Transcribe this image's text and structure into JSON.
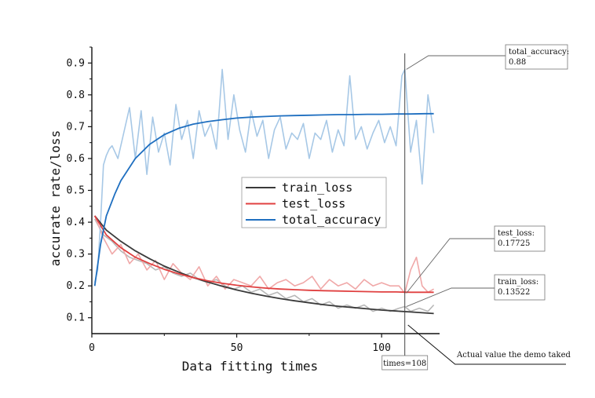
{
  "chart_data": {
    "type": "line",
    "title": "",
    "xlabel": "Data fitting times",
    "ylabel": "accurate rate/loss",
    "xlim": [
      0,
      120
    ],
    "ylim": [
      0.05,
      0.95
    ],
    "x_ticks": [
      0,
      50,
      100
    ],
    "y_ticks": [
      0.1,
      0.2,
      0.3,
      0.4,
      0.5,
      0.6,
      0.7,
      0.8,
      0.9
    ],
    "grid": false,
    "legend": {
      "placement": "center-right",
      "entries": [
        {
          "name": "train_loss",
          "color": "#3a3a3a"
        },
        {
          "name": "test_loss",
          "color": "#e04040"
        },
        {
          "name": "total_accuracy",
          "color": "#1f6fc0"
        }
      ]
    },
    "fitted_series": [
      {
        "name": "train_loss",
        "color": "#3a3a3a",
        "x": [
          1,
          5,
          10,
          15,
          20,
          25,
          30,
          35,
          40,
          45,
          50,
          55,
          60,
          65,
          70,
          75,
          80,
          85,
          90,
          95,
          100,
          105,
          110,
          115,
          118
        ],
        "y": [
          0.42,
          0.375,
          0.34,
          0.31,
          0.285,
          0.262,
          0.243,
          0.226,
          0.212,
          0.199,
          0.187,
          0.177,
          0.168,
          0.16,
          0.153,
          0.147,
          0.141,
          0.136,
          0.132,
          0.128,
          0.124,
          0.121,
          0.118,
          0.115,
          0.113
        ]
      },
      {
        "name": "test_loss",
        "color": "#e04040",
        "x": [
          1,
          5,
          10,
          15,
          20,
          25,
          30,
          35,
          40,
          45,
          50,
          55,
          60,
          65,
          70,
          75,
          80,
          85,
          90,
          95,
          100,
          105,
          110,
          115,
          118
        ],
        "y": [
          0.42,
          0.36,
          0.32,
          0.29,
          0.27,
          0.252,
          0.238,
          0.226,
          0.216,
          0.208,
          0.202,
          0.197,
          0.193,
          0.19,
          0.188,
          0.186,
          0.185,
          0.184,
          0.183,
          0.182,
          0.181,
          0.181,
          0.18,
          0.18,
          0.18
        ]
      },
      {
        "name": "total_accuracy",
        "color": "#1f6fc0",
        "x": [
          1,
          3,
          5,
          8,
          10,
          15,
          20,
          25,
          30,
          35,
          40,
          45,
          50,
          55,
          60,
          65,
          70,
          75,
          80,
          85,
          90,
          95,
          100,
          105,
          110,
          115,
          118
        ],
        "y": [
          0.2,
          0.33,
          0.42,
          0.49,
          0.53,
          0.6,
          0.645,
          0.675,
          0.695,
          0.708,
          0.716,
          0.722,
          0.727,
          0.73,
          0.732,
          0.734,
          0.735,
          0.736,
          0.737,
          0.738,
          0.738,
          0.739,
          0.739,
          0.74,
          0.74,
          0.741,
          0.741
        ]
      }
    ],
    "raw_series": [
      {
        "name": "train_loss",
        "color": "#b8b8b8",
        "x": [
          1,
          4,
          7,
          10,
          13,
          16,
          19,
          22,
          25,
          28,
          31,
          34,
          37,
          40,
          43,
          46,
          49,
          52,
          55,
          58,
          61,
          64,
          67,
          70,
          73,
          76,
          79,
          82,
          85,
          88,
          91,
          94,
          97,
          100,
          103,
          106,
          108,
          110,
          113,
          116,
          118
        ],
        "y": [
          0.41,
          0.36,
          0.34,
          0.31,
          0.29,
          0.28,
          0.27,
          0.25,
          0.26,
          0.24,
          0.23,
          0.24,
          0.22,
          0.21,
          0.22,
          0.2,
          0.19,
          0.2,
          0.18,
          0.19,
          0.17,
          0.18,
          0.16,
          0.17,
          0.15,
          0.16,
          0.14,
          0.15,
          0.13,
          0.14,
          0.13,
          0.14,
          0.12,
          0.13,
          0.12,
          0.13,
          0.135,
          0.12,
          0.13,
          0.12,
          0.14
        ]
      },
      {
        "name": "test_loss",
        "color": "#f0a8a8",
        "x": [
          1,
          4,
          7,
          10,
          13,
          16,
          19,
          22,
          25,
          28,
          31,
          34,
          37,
          40,
          43,
          46,
          49,
          52,
          55,
          58,
          61,
          64,
          67,
          70,
          73,
          76,
          79,
          82,
          85,
          88,
          91,
          94,
          97,
          100,
          103,
          106,
          108,
          110,
          112,
          114,
          116,
          118
        ],
        "y": [
          0.42,
          0.35,
          0.3,
          0.33,
          0.27,
          0.3,
          0.25,
          0.28,
          0.22,
          0.27,
          0.24,
          0.22,
          0.26,
          0.2,
          0.23,
          0.19,
          0.22,
          0.21,
          0.2,
          0.23,
          0.19,
          0.21,
          0.22,
          0.2,
          0.21,
          0.23,
          0.19,
          0.22,
          0.2,
          0.21,
          0.19,
          0.22,
          0.2,
          0.21,
          0.2,
          0.2,
          0.177,
          0.25,
          0.29,
          0.2,
          0.18,
          0.19
        ]
      },
      {
        "name": "total_accuracy",
        "color": "#a7c8e6",
        "x": [
          1,
          2,
          3,
          4,
          5,
          6,
          7,
          9,
          11,
          13,
          15,
          17,
          19,
          21,
          23,
          25,
          27,
          29,
          31,
          33,
          35,
          37,
          39,
          41,
          43,
          45,
          47,
          49,
          51,
          53,
          55,
          57,
          59,
          61,
          63,
          65,
          67,
          69,
          71,
          73,
          75,
          77,
          79,
          81,
          83,
          85,
          87,
          89,
          91,
          93,
          95,
          97,
          99,
          101,
          103,
          105,
          107,
          108,
          110,
          112,
          114,
          116,
          118
        ],
        "y": [
          0.21,
          0.25,
          0.4,
          0.58,
          0.61,
          0.63,
          0.64,
          0.6,
          0.68,
          0.76,
          0.6,
          0.75,
          0.55,
          0.73,
          0.62,
          0.68,
          0.58,
          0.77,
          0.66,
          0.72,
          0.6,
          0.75,
          0.67,
          0.71,
          0.63,
          0.88,
          0.66,
          0.8,
          0.69,
          0.62,
          0.75,
          0.67,
          0.72,
          0.6,
          0.69,
          0.73,
          0.63,
          0.68,
          0.66,
          0.71,
          0.6,
          0.68,
          0.66,
          0.72,
          0.62,
          0.69,
          0.64,
          0.86,
          0.66,
          0.7,
          0.63,
          0.68,
          0.72,
          0.65,
          0.7,
          0.64,
          0.86,
          0.88,
          0.62,
          0.72,
          0.52,
          0.8,
          0.68
        ]
      }
    ],
    "marker_line": {
      "x": 108,
      "label": "times=108"
    },
    "annotations": [
      {
        "id": "total_accuracy",
        "line1": "total_accuracy:",
        "line2": "0.88",
        "target_x": 108,
        "target_y": 0.88
      },
      {
        "id": "test_loss",
        "line1": "test_loss:",
        "line2": "0.17725",
        "target_x": 108,
        "target_y": 0.177
      },
      {
        "id": "train_loss",
        "line1": "train_loss:",
        "line2": "0.13522",
        "target_x": 108,
        "target_y": 0.135
      }
    ],
    "note": "Actual value the demo taked"
  }
}
